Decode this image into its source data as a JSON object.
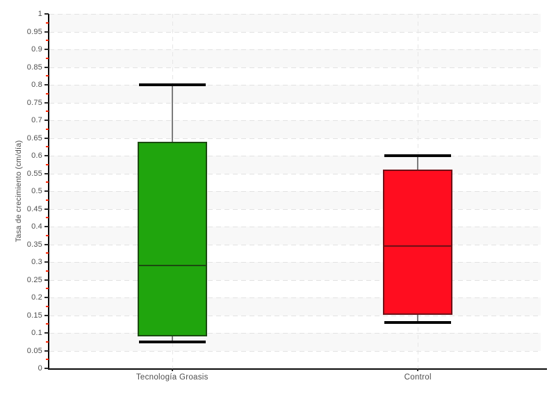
{
  "chart_data": {
    "type": "boxplot",
    "title": "",
    "xlabel": "",
    "ylabel": "Tasa de crecimiento (cm/día)",
    "ylim": [
      0,
      1
    ],
    "ytick_step": 0.05,
    "yticks": [
      "0",
      "0.05",
      "0.1",
      "0.15",
      "0.2",
      "0.25",
      "0.3",
      "0.35",
      "0.4",
      "0.45",
      "0.5",
      "0.55",
      "0.6",
      "0.65",
      "0.7",
      "0.75",
      "0.8",
      "0.85",
      "0.9",
      "0.95",
      "1"
    ],
    "grid": "horizontal dashed lines every 0.05 with alternating shaded bands; vertical dashed guide at each category center",
    "legend": "none",
    "categories": [
      "Tecnología Groasis",
      "Control"
    ],
    "series": [
      {
        "name": "Tecnología Groasis",
        "min": 0.075,
        "q1": 0.09,
        "median": 0.29,
        "q3": 0.64,
        "max": 0.8,
        "fill": "#20A50D",
        "border": "#1B4A10"
      },
      {
        "name": "Control",
        "min": 0.13,
        "q1": 0.15,
        "median": 0.345,
        "q3": 0.56,
        "max": 0.6,
        "fill": "#FF0D1F",
        "border": "#6E1016"
      }
    ]
  },
  "colors": {
    "background": "#ffffff",
    "band_shaded": "#f8f8f8",
    "band_plain": "#ffffff",
    "gridline": "#e2e2e2",
    "axis": "#0a0a0a",
    "tick_label": "#4d4d4d",
    "major_tick": "#2a2a2a",
    "minor_tick": "#ff2400",
    "whisker_stem": "#7c7c7c",
    "whisker_cap": "#060606"
  }
}
